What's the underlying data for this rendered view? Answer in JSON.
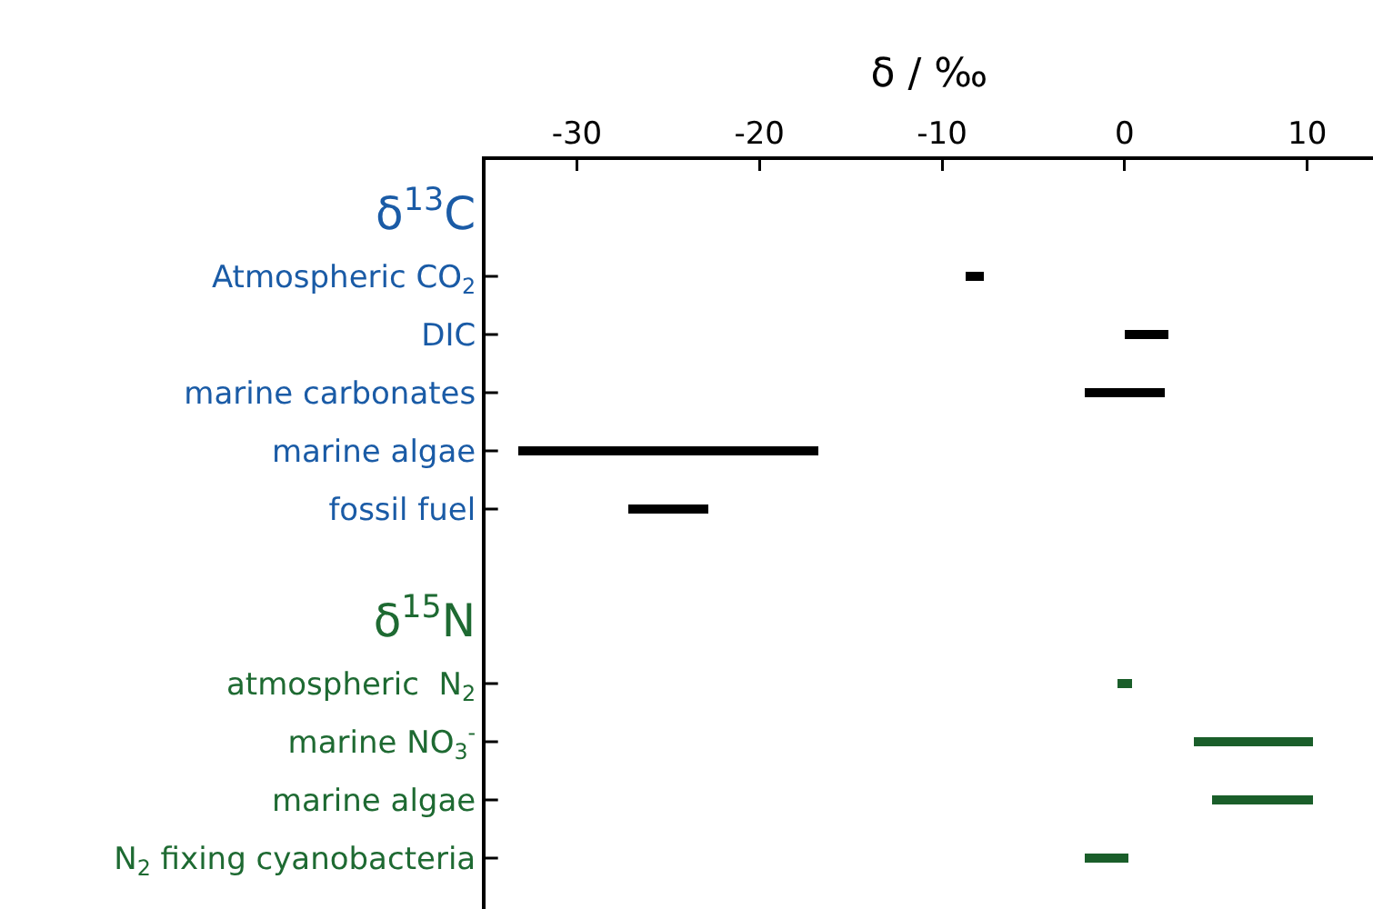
{
  "chart_data": {
    "type": "bar",
    "orientation": "horizontal",
    "xlabel": "δ / ‰",
    "categories": [
      "δ$^{13}$C",
      "Atmospheric CO$_{2}$",
      "DIC",
      "marine carbonates",
      "marine algae",
      "fossil fuel",
      null,
      "δ$^{15}$N",
      "atmospheric  N$_{2}$",
      "marine NO$_{3}$$^{-}$",
      "marine algae",
      "N$_{2}$ fixing cyanobacteria"
    ],
    "series": [
      {
        "color": "#000000",
        "base": [
          null,
          -8.7,
          0,
          -2.2,
          -33.2,
          -27.2,
          null,
          null,
          null,
          null,
          null,
          null
        ],
        "values": [
          null,
          1.0,
          2.4,
          4.4,
          16.4,
          4.4,
          null,
          null,
          null,
          null,
          null,
          null
        ]
      },
      {
        "color": "#1a5e2a",
        "base": [
          null,
          null,
          null,
          null,
          null,
          null,
          null,
          null,
          -0.4,
          3.8,
          4.8,
          -2.2
        ],
        "values": [
          null,
          null,
          null,
          null,
          null,
          null,
          null,
          null,
          0.8,
          6.5,
          5.5,
          2.4
        ]
      }
    ],
    "xlim": [
      -35,
      13.6
    ],
    "xticks": [
      -30,
      -20,
      -10,
      0,
      10
    ],
    "grid": false
  }
}
